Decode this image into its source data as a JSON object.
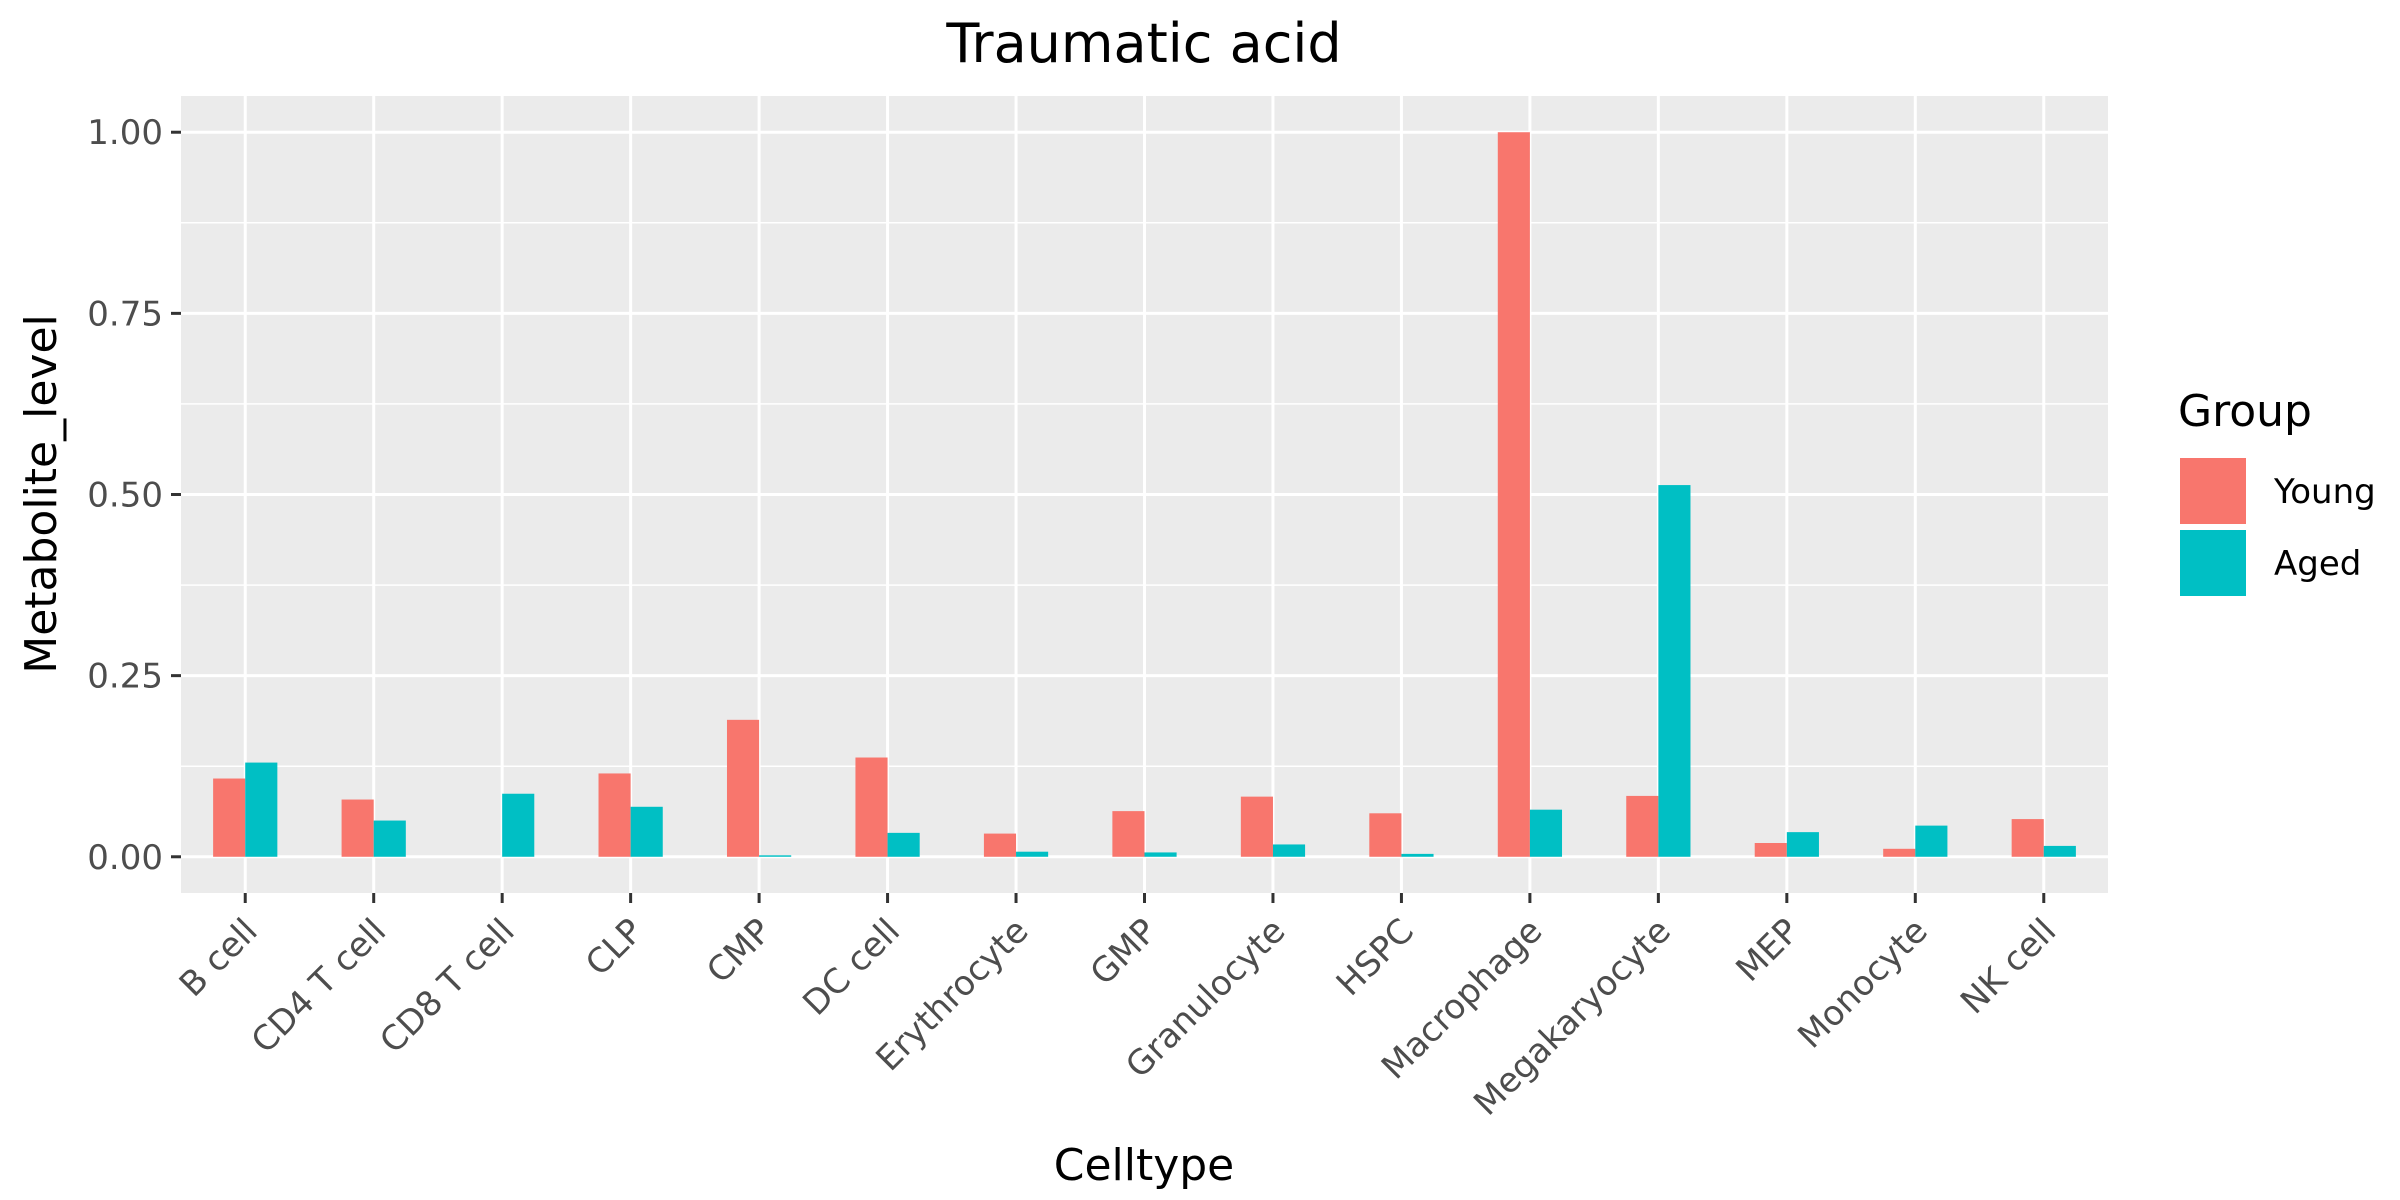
{
  "chart_data": {
    "type": "bar",
    "title": "Traumatic acid",
    "xlabel": "Celltype",
    "ylabel": "Metabolite_level",
    "categories": [
      "B cell",
      "CD4 T cell",
      "CD8 T cell",
      "CLP",
      "CMP",
      "DC cell",
      "Erythrocyte",
      "GMP",
      "Granulocyte",
      "HSPC",
      "Macrophage",
      "Megakaryocyte",
      "MEP",
      "Monocyte",
      "NK cell"
    ],
    "series": [
      {
        "name": "Young",
        "color": "#F8766D",
        "values": [
          0.108,
          0.079,
          0.0,
          0.115,
          0.189,
          0.137,
          0.032,
          0.063,
          0.083,
          0.06,
          1.0,
          0.084,
          0.019,
          0.011,
          0.052
        ]
      },
      {
        "name": "Aged",
        "color": "#00BFC4",
        "values": [
          0.13,
          0.05,
          0.087,
          0.069,
          0.002,
          0.033,
          0.007,
          0.006,
          0.017,
          0.004,
          0.065,
          0.513,
          0.034,
          0.043,
          0.015
        ]
      }
    ],
    "ylim": [
      -0.05,
      1.05
    ],
    "yticks": [
      0.0,
      0.25,
      0.5,
      0.75,
      1.0
    ],
    "ytick_labels": [
      "0.00",
      "0.25",
      "0.50",
      "0.75",
      "1.00"
    ],
    "grid": true,
    "legend": {
      "title": "Group",
      "position": "right"
    }
  }
}
